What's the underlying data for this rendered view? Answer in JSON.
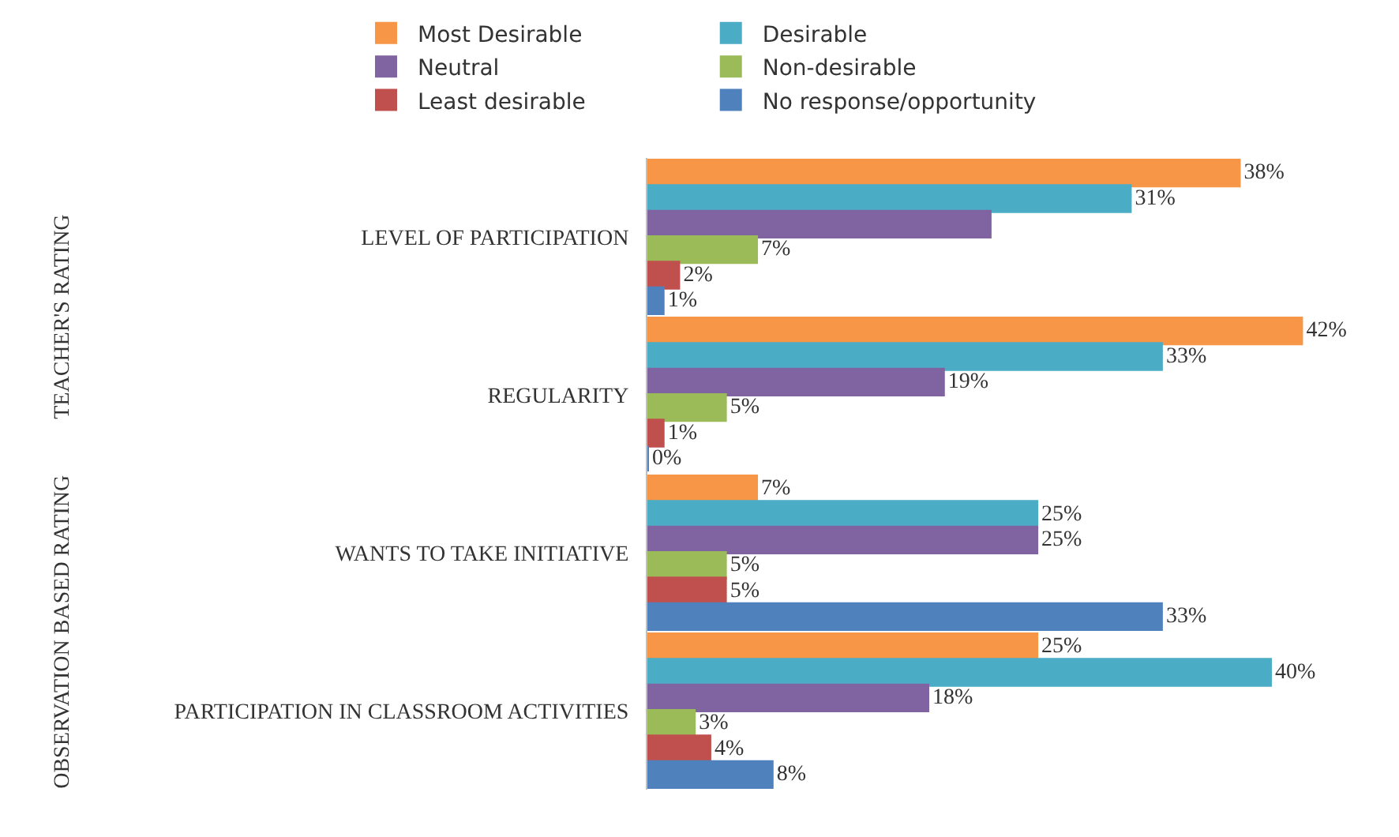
{
  "chart_data": {
    "type": "bar",
    "orientation": "horizontal",
    "legend": "top",
    "categories": [
      "LEVEL OF PARTICIPATION",
      "REGULARITY",
      "WANTS TO TAKE INITIATIVE",
      "PARTICIPATION IN CLASSROOM ACTIVITIES"
    ],
    "annotations": [
      "TEACHER'S RATING",
      "OBSERVATION BASED RATING"
    ],
    "series": [
      {
        "name": "Most Desirable",
        "color": "#f79646",
        "values": [
          38,
          42,
          7,
          25
        ],
        "value_labels": [
          "38%",
          "42%",
          "7%",
          "25%"
        ]
      },
      {
        "name": "Desirable",
        "color": "#4bacc6",
        "values": [
          31,
          33,
          25,
          40
        ],
        "value_labels": [
          "31%",
          "33%",
          "25%",
          "40%"
        ]
      },
      {
        "name": "Neutral",
        "color": "#8064a2",
        "values": [
          22,
          19,
          25,
          18
        ],
        "value_labels": [
          null,
          "19%",
          "25%",
          "18%"
        ]
      },
      {
        "name": "Non-desirable",
        "color": "#9bbb59",
        "values": [
          7,
          5,
          5,
          3
        ],
        "value_labels": [
          "7%",
          "5%",
          "5%",
          "3%"
        ]
      },
      {
        "name": "Least desirable",
        "color": "#c0504d",
        "values": [
          2,
          1,
          5,
          4
        ],
        "value_labels": [
          "2%",
          "1%",
          "5%",
          "4%"
        ]
      },
      {
        "name": "No response/opportunity",
        "color": "#4f81bd",
        "values": [
          1,
          0,
          33,
          8
        ],
        "value_labels": [
          "1%",
          "0%",
          "33%",
          "8%"
        ]
      }
    ]
  }
}
